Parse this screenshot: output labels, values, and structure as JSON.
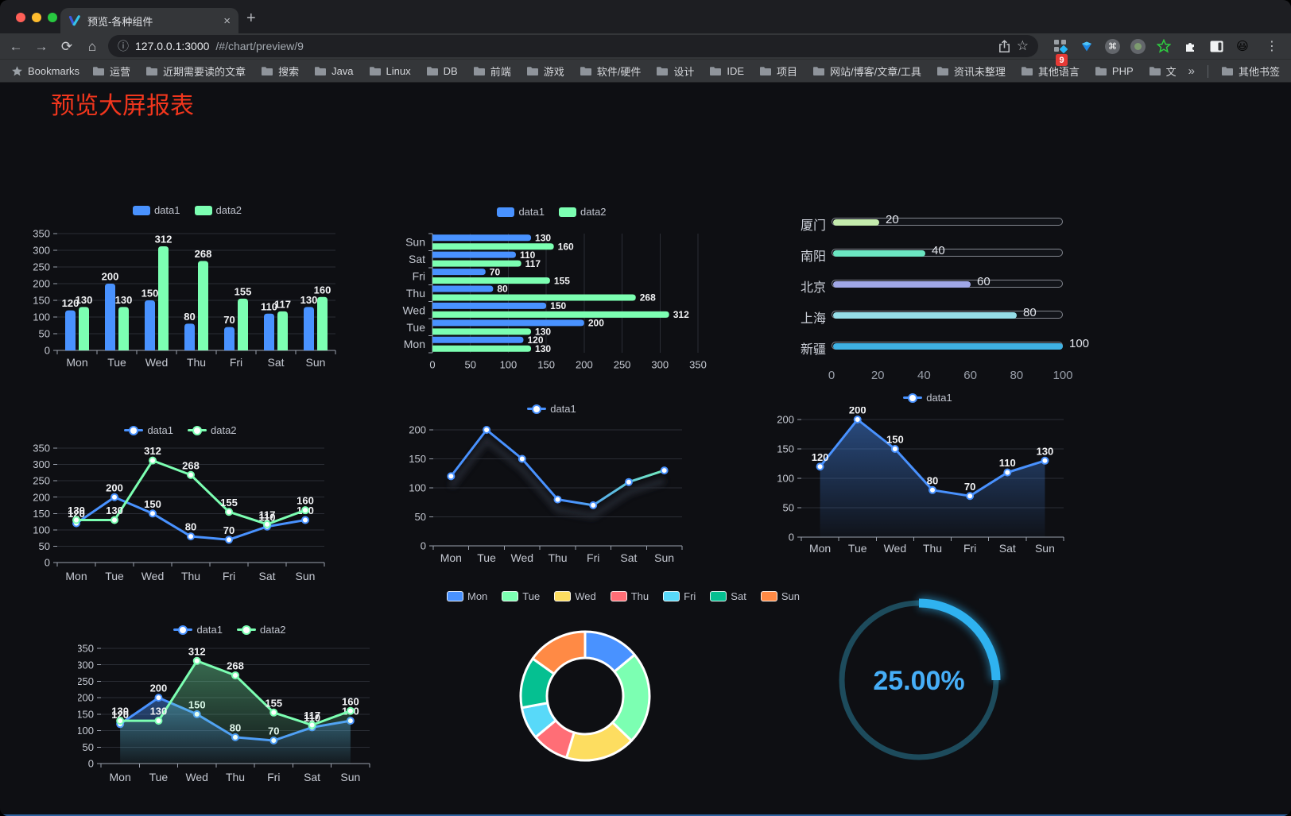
{
  "browser": {
    "tab_title": "预览-各种组件",
    "url_host": "127.0.0.1:3000",
    "url_path": "/#/chart/preview/9",
    "badge_count": "9",
    "bookmarks_label": "Bookmarks",
    "bookmarks": [
      "运营",
      "近期需要读的文章",
      "搜索",
      "Java",
      "Linux",
      "DB",
      "前端",
      "游戏",
      "软件/硬件",
      "设计",
      "IDE",
      "项目",
      "网站/博客/文章/工具",
      "资讯未整理",
      "其他语言",
      "PHP",
      "文件服务器"
    ],
    "bookmarks_overflow": "»",
    "other_bookmarks": "其他书签",
    "traffic_lights": [
      "#ff5f57",
      "#febc2e",
      "#28c840"
    ]
  },
  "icons": {
    "back": "←",
    "forward": "→",
    "reload": "⟳",
    "home": "⌂",
    "info": "ⓘ",
    "star": "☆",
    "close": "×",
    "plus": "+",
    "command": "⌘",
    "menu_dots": "⋮",
    "emoji": "😃"
  },
  "page": {
    "title": "预览大屏报表",
    "title_color": "#f1361d",
    "background": "#0e0f13"
  },
  "chart_data": [
    {
      "id": "bar-grouped",
      "type": "bar",
      "categories": [
        "Mon",
        "Tue",
        "Wed",
        "Thu",
        "Fri",
        "Sat",
        "Sun"
      ],
      "series": [
        {
          "name": "data1",
          "color": "#4992ff",
          "values": [
            120,
            200,
            150,
            80,
            70,
            110,
            130
          ]
        },
        {
          "name": "data2",
          "color": "#7cffb2",
          "values": [
            130,
            130,
            312,
            268,
            155,
            117,
            160
          ]
        }
      ],
      "ylim": [
        0,
        350
      ],
      "ystep": 50,
      "legend": true,
      "value_labels": true,
      "grid": true
    },
    {
      "id": "bar-horizontal",
      "type": "bar-horizontal",
      "categories": [
        "Mon",
        "Tue",
        "Wed",
        "Thu",
        "Fri",
        "Sat",
        "Sun"
      ],
      "series": [
        {
          "name": "data1",
          "color": "#4992ff",
          "values": [
            120,
            200,
            150,
            80,
            70,
            110,
            130
          ]
        },
        {
          "name": "data2",
          "color": "#7cffb2",
          "values": [
            130,
            130,
            312,
            268,
            155,
            117,
            160
          ]
        }
      ],
      "xlim": [
        0,
        350
      ],
      "xstep": 50,
      "legend": true,
      "value_labels": true,
      "grid": true
    },
    {
      "id": "progress",
      "type": "progress",
      "xlim": [
        0,
        100
      ],
      "ticks": [
        0,
        20,
        40,
        60,
        80,
        100
      ],
      "items": [
        {
          "label": "厦门",
          "value": 20,
          "color": "#c4ebad"
        },
        {
          "label": "南阳",
          "value": 40,
          "color": "#6be6c1"
        },
        {
          "label": "北京",
          "value": 60,
          "color": "#a0a7e6"
        },
        {
          "label": "上海",
          "value": 80,
          "color": "#96dee8"
        },
        {
          "label": "新疆",
          "value": 100,
          "color": "#3fb1e3"
        }
      ]
    },
    {
      "id": "line-two",
      "type": "line",
      "categories": [
        "Mon",
        "Tue",
        "Wed",
        "Thu",
        "Fri",
        "Sat",
        "Sun"
      ],
      "series": [
        {
          "name": "data1",
          "color": "#4992ff",
          "values": [
            120,
            200,
            150,
            80,
            70,
            110,
            130
          ]
        },
        {
          "name": "data2",
          "color": "#7cffb2",
          "values": [
            130,
            130,
            312,
            268,
            155,
            117,
            160
          ]
        }
      ],
      "ylim": [
        0,
        350
      ],
      "ystep": 50,
      "legend": true,
      "value_labels": true,
      "grid": true
    },
    {
      "id": "line-gradient",
      "type": "line",
      "categories": [
        "Mon",
        "Tue",
        "Wed",
        "Thu",
        "Fri",
        "Sat",
        "Sun"
      ],
      "series": [
        {
          "name": "data1",
          "color": "#4992ff",
          "color2": "#7cffb2",
          "values": [
            120,
            200,
            150,
            80,
            70,
            110,
            130
          ]
        }
      ],
      "ylim": [
        0,
        200
      ],
      "ystep": 50,
      "legend": true,
      "value_labels": false,
      "gradient_stroke": true,
      "shadow": true,
      "grid": true
    },
    {
      "id": "line-area",
      "type": "line",
      "categories": [
        "Mon",
        "Tue",
        "Wed",
        "Thu",
        "Fri",
        "Sat",
        "Sun"
      ],
      "series": [
        {
          "name": "data1",
          "color": "#4992ff",
          "values": [
            120,
            200,
            150,
            80,
            70,
            110,
            130
          ],
          "area": true
        }
      ],
      "ylim": [
        0,
        200
      ],
      "ystep": 50,
      "legend": true,
      "value_labels": true,
      "grid": true
    },
    {
      "id": "line-area-two",
      "type": "line",
      "categories": [
        "Mon",
        "Tue",
        "Wed",
        "Thu",
        "Fri",
        "Sat",
        "Sun"
      ],
      "series": [
        {
          "name": "data1",
          "color": "#4992ff",
          "values": [
            120,
            200,
            150,
            80,
            70,
            110,
            130
          ],
          "area": true
        },
        {
          "name": "data2",
          "color": "#7cffb2",
          "values": [
            130,
            130,
            312,
            268,
            155,
            117,
            160
          ],
          "area": true
        }
      ],
      "ylim": [
        0,
        350
      ],
      "ystep": 50,
      "legend": true,
      "value_labels": true,
      "grid": true
    },
    {
      "id": "donut",
      "type": "pie",
      "items": [
        {
          "label": "Mon",
          "value": 120,
          "color": "#4992ff"
        },
        {
          "label": "Tue",
          "value": 200,
          "color": "#7cffb2"
        },
        {
          "label": "Wed",
          "value": 150,
          "color": "#fddd60"
        },
        {
          "label": "Thu",
          "value": 80,
          "color": "#ff6e76"
        },
        {
          "label": "Fri",
          "value": 70,
          "color": "#58d9f9"
        },
        {
          "label": "Sat",
          "value": 110,
          "color": "#05c091"
        },
        {
          "label": "Sun",
          "value": 130,
          "color": "#ff8a45"
        }
      ],
      "legend": true
    },
    {
      "id": "gauge",
      "type": "gauge",
      "value": 25,
      "display": "25.00%",
      "color": "#2fb2f0",
      "track": "#1d4b5c",
      "text_color": "#46aef7"
    }
  ]
}
